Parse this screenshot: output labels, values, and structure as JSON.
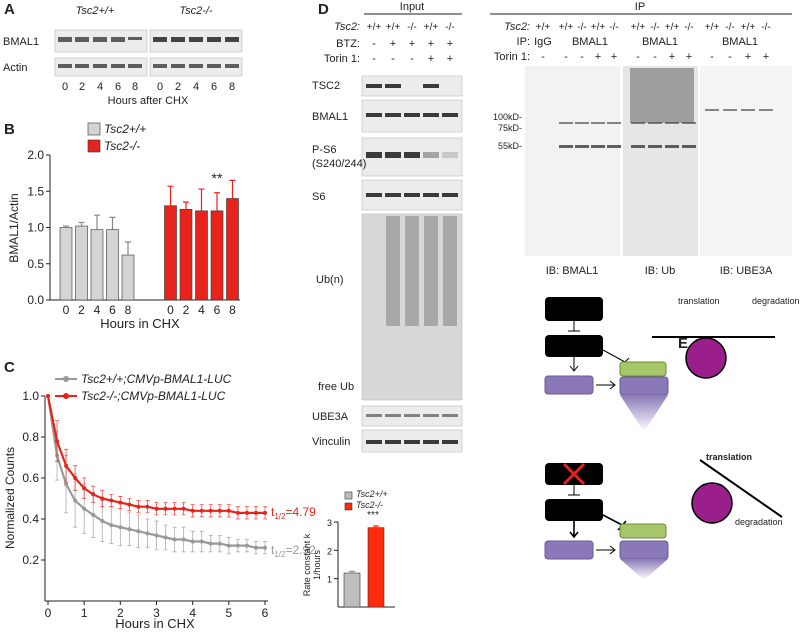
{
  "panels": {
    "a": "A",
    "b": "B",
    "c": "C",
    "d": "D",
    "e": "E"
  },
  "panel_a": {
    "genotypes": [
      "Tsc2+/+",
      "Tsc2-/-"
    ],
    "rows": [
      "BMAL1",
      "Actin"
    ],
    "lanes": [
      "0",
      "2",
      "4",
      "6",
      "8",
      "0",
      "2",
      "4",
      "6",
      "8"
    ],
    "xlabel": "Hours after CHX"
  },
  "panel_d": {
    "title": "Input",
    "tsc2_label": "Tsc2:",
    "tsc2": [
      "+/+",
      "+/+",
      "-/-",
      "+/+",
      "-/-"
    ],
    "btz_label": "BTZ:",
    "btz": [
      "-",
      "+",
      "+",
      "+",
      "+"
    ],
    "torin_label": "Torin 1:",
    "torin": [
      "-",
      "-",
      "-",
      "+",
      "+"
    ],
    "rows": [
      "TSC2",
      "BMAL1",
      "P-S6",
      "(S240/244)",
      "S6",
      "Ub(n)",
      "free Ub",
      "UBE3A",
      "Vinculin"
    ]
  },
  "panel_d_ip": {
    "title": "IP",
    "tsc2_label": "Tsc2:",
    "tsc2": [
      "+/+",
      "+/+",
      "-/-",
      "+/+",
      "-/-",
      "+/+",
      "-/-",
      "+/+",
      "-/-",
      "+/+",
      "-/-",
      "+/+",
      "-/-"
    ],
    "ip_label": "IP:",
    "ip_groups": [
      "IgG",
      "BMAL1",
      "BMAL1",
      "BMAL1"
    ],
    "torin_label": "Torin 1:",
    "torin": [
      "-",
      "-",
      "-",
      "+",
      "+",
      "-",
      "-",
      "+",
      "+",
      "-",
      "-",
      "+",
      "+"
    ],
    "markers": [
      "100kD-",
      "75kD-",
      "55kD-"
    ],
    "blots": [
      "IB: BMAL1",
      "IB: Ub",
      "IB: UBE3A"
    ]
  },
  "panel_e": {
    "labels": [
      "translation",
      "degradation",
      "translation",
      "degradation"
    ]
  },
  "chart_data": [
    {
      "type": "bar",
      "ylabel": "BMAL1/Actin",
      "xlabel": "Hours in CHX",
      "annotation": "**",
      "categories": [
        "0",
        "2",
        "4",
        "6",
        "8",
        "0",
        "2",
        "4",
        "6",
        "8"
      ],
      "series": [
        {
          "name": "Tsc2+/+",
          "color": "#d4d4d4",
          "values": [
            1.0,
            1.02,
            0.97,
            0.97,
            0.62,
            null,
            null,
            null,
            null,
            null
          ],
          "errors": [
            0.02,
            0.05,
            0.2,
            0.17,
            0.18,
            null,
            null,
            null,
            null,
            null
          ]
        },
        {
          "name": "Tsc2-/-",
          "color": "#e8231b",
          "values": [
            null,
            null,
            null,
            null,
            null,
            1.3,
            1.25,
            1.23,
            1.23,
            1.4
          ],
          "errors": [
            null,
            null,
            null,
            null,
            null,
            0.27,
            0.1,
            0.3,
            0.25,
            0.25
          ]
        }
      ],
      "ylim": [
        0,
        2.0
      ],
      "yticks": [
        {
          "value": 0,
          "label": "0.0"
        },
        {
          "value": 0.5,
          "label": "0.5"
        },
        {
          "value": 1,
          "label": "1.0"
        },
        {
          "value": 1.5,
          "label": "1.5"
        },
        {
          "value": 2,
          "label": "2.0"
        }
      ]
    },
    {
      "type": "line",
      "ylabel": "Normalized Counts",
      "xlabel": "Hours in CHX",
      "x": [
        0,
        0.25,
        0.5,
        0.75,
        1,
        1.25,
        1.5,
        1.75,
        2,
        2.25,
        2.5,
        2.75,
        3,
        3.25,
        3.5,
        3.75,
        4,
        4.25,
        4.5,
        4.75,
        5,
        5.25,
        5.5,
        5.75,
        6
      ],
      "series": [
        {
          "name": "Tsc2+/+;CMVp-BMAL1-LUC",
          "color": "#999999",
          "values": [
            1.0,
            0.71,
            0.57,
            0.49,
            0.45,
            0.42,
            0.39,
            0.37,
            0.36,
            0.35,
            0.34,
            0.33,
            0.32,
            0.31,
            0.3,
            0.3,
            0.29,
            0.29,
            0.28,
            0.28,
            0.27,
            0.27,
            0.27,
            0.26,
            0.26
          ],
          "errors": [
            0,
            0.12,
            0.14,
            0.13,
            0.12,
            0.11,
            0.1,
            0.09,
            0.09,
            0.08,
            0.08,
            0.07,
            0.07,
            0.06,
            0.06,
            0.06,
            0.05,
            0.05,
            0.04,
            0.04,
            0.04,
            0.03,
            0.03,
            0.03,
            0.03
          ]
        },
        {
          "name": "Tsc2-/-;CMVp-BMAL1-LUC",
          "color": "#e8231b",
          "values": [
            1.0,
            0.78,
            0.66,
            0.6,
            0.55,
            0.52,
            0.5,
            0.49,
            0.48,
            0.47,
            0.46,
            0.46,
            0.45,
            0.45,
            0.45,
            0.45,
            0.44,
            0.44,
            0.44,
            0.44,
            0.44,
            0.43,
            0.43,
            0.43,
            0.43
          ],
          "errors": [
            0,
            0.1,
            0.08,
            0.06,
            0.05,
            0.04,
            0.04,
            0.03,
            0.03,
            0.03,
            0.03,
            0.03,
            0.03,
            0.03,
            0.03,
            0.03,
            0.03,
            0.03,
            0.03,
            0.03,
            0.03,
            0.03,
            0.03,
            0.03,
            0.03
          ]
        }
      ],
      "annotations": [
        {
          "text": "t",
          "sub": "1/2",
          "rest": "=4.79",
          "color": "#e8231b"
        },
        {
          "text": "t",
          "sub": "1/2",
          "rest": "=2.92",
          "color": "#999999"
        }
      ],
      "xlim": [
        0,
        6
      ],
      "xticks": [
        0,
        1,
        2,
        3,
        4,
        5,
        6
      ],
      "ylim": [
        0,
        1.0
      ],
      "yticks": [
        0.2,
        0.4,
        0.6,
        0.8,
        {
          "value": 1,
          "label": "1.0"
        }
      ]
    },
    {
      "type": "bar",
      "ylabel": [
        "Rate constant k",
        "1/hours"
      ],
      "annotation": "***",
      "series": [
        {
          "name": "Tsc2+/+",
          "color": "#bdbdbd",
          "values": [
            1.2
          ],
          "errors": [
            0.06
          ]
        },
        {
          "name": "Tsc2-/-",
          "color": "#ff2a0a",
          "values": [
            2.8
          ],
          "errors": [
            0.06
          ]
        }
      ],
      "ylim": [
        0,
        3
      ],
      "yticks": [
        1,
        2,
        3
      ]
    }
  ]
}
